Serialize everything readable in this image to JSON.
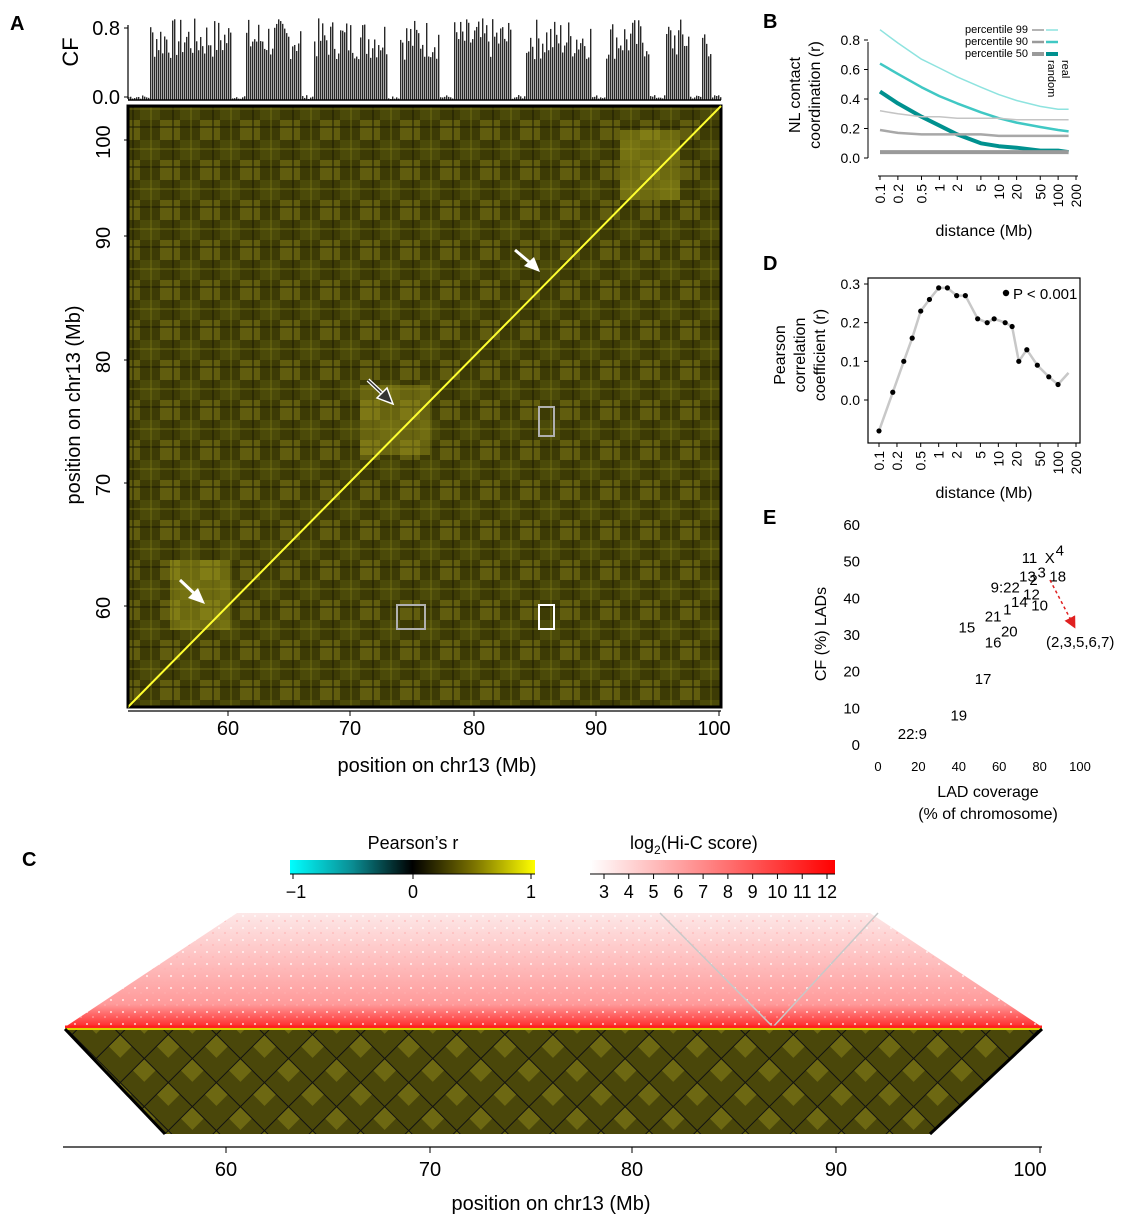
{
  "panels": {
    "A": {
      "label": "A",
      "cf_label": "CF",
      "cf_ticks": [
        "0.0",
        "0.8"
      ],
      "x_ticks": [
        "60",
        "70",
        "80",
        "90",
        "100"
      ],
      "y_ticks": [
        "60",
        "70",
        "80",
        "90",
        "100"
      ],
      "x_label": "position on chr13 (Mb)",
      "y_label": "position on chr13 (Mb)"
    },
    "B": {
      "label": "B",
      "y_label_1": "NL contact",
      "y_label_2": "coordination (r)",
      "x_label": "distance (Mb)",
      "y_ticks": [
        "0.0",
        "0.2",
        "0.4",
        "0.6",
        "0.8"
      ],
      "x_ticks": [
        "0.1",
        "0.2",
        "0.5",
        "1",
        "2",
        "5",
        "10",
        "20",
        "50",
        "100",
        "200"
      ],
      "legend": [
        "percentile 99",
        "percentile 90",
        "percentile 50"
      ],
      "legend_side": [
        "real",
        "random"
      ]
    },
    "C": {
      "label": "C",
      "pearson_title": "Pearson’s r",
      "pearson_ticks": [
        "−1",
        "0",
        "1"
      ],
      "hic_title": "log",
      "hic_sub": "2",
      "hic_title_rest": "(Hi-C score)",
      "hic_ticks": [
        "3",
        "4",
        "5",
        "6",
        "7",
        "8",
        "9",
        "10",
        "11",
        "12"
      ],
      "x_ticks": [
        "60",
        "70",
        "80",
        "90",
        "100"
      ],
      "x_label": "position on chr13 (Mb)"
    },
    "D": {
      "label": "D",
      "y_label_1": "Pearson",
      "y_label_2": "correlation",
      "y_label_3": "coefficient (r)",
      "x_label": "distance (Mb)",
      "y_ticks": [
        "0.0",
        "0.1",
        "0.2",
        "0.3"
      ],
      "x_ticks": [
        "0.1",
        "0.2",
        "0.5",
        "1",
        "2",
        "5",
        "10",
        "20",
        "50",
        "100",
        "200"
      ],
      "annotation": "P < 0.001"
    },
    "E": {
      "label": "E",
      "y_label": "CF (%) LADs",
      "x_label_1": "LAD coverage",
      "x_label_2": "(% of chromosome)",
      "y_ticks": [
        "0",
        "10",
        "20",
        "30",
        "40",
        "50",
        "60"
      ],
      "x_ticks": [
        "0",
        "20",
        "40",
        "60",
        "80",
        "100"
      ],
      "arrow_label": "(2,3,5,6,7)"
    }
  },
  "colors": {
    "teal_dark": "#00918f",
    "teal_mid": "#40c8c4",
    "teal_light": "#8ee3df",
    "gray": "#9a9a9a",
    "heat_yellow": "#f0e020",
    "heat_red": "#ff0000",
    "arrow_red": "#e02020"
  },
  "chart_data": [
    {
      "id": "B",
      "type": "line",
      "x": [
        0.1,
        0.2,
        0.5,
        1,
        2,
        5,
        10,
        20,
        50,
        100,
        150
      ],
      "xscale": "log",
      "xlim": [
        0.1,
        200
      ],
      "ylim": [
        -0.05,
        0.9
      ],
      "ylabel": "NL contact coordination (r)",
      "xlabel": "distance (Mb)",
      "series": [
        {
          "name": "percentile 99",
          "group": "real",
          "values": [
            0.87,
            0.78,
            0.67,
            0.61,
            0.55,
            0.48,
            0.43,
            0.39,
            0.35,
            0.33,
            0.33
          ]
        },
        {
          "name": "percentile 90",
          "group": "real",
          "values": [
            0.64,
            0.57,
            0.48,
            0.42,
            0.37,
            0.31,
            0.27,
            0.24,
            0.21,
            0.19,
            0.18
          ]
        },
        {
          "name": "percentile 50",
          "group": "real",
          "values": [
            0.45,
            0.37,
            0.28,
            0.22,
            0.16,
            0.1,
            0.08,
            0.07,
            0.05,
            0.05,
            0.04
          ]
        },
        {
          "name": "percentile 99",
          "group": "random",
          "values": [
            0.32,
            0.3,
            0.28,
            0.28,
            0.27,
            0.27,
            0.27,
            0.26,
            0.26,
            0.26,
            0.26
          ]
        },
        {
          "name": "percentile 90",
          "group": "random",
          "values": [
            0.19,
            0.17,
            0.16,
            0.16,
            0.16,
            0.16,
            0.15,
            0.15,
            0.15,
            0.15,
            0.15
          ]
        },
        {
          "name": "percentile 50",
          "group": "random",
          "values": [
            0.04,
            0.04,
            0.04,
            0.04,
            0.04,
            0.04,
            0.04,
            0.04,
            0.04,
            0.04,
            0.04
          ]
        }
      ]
    },
    {
      "id": "D",
      "type": "scatter",
      "xscale": "log",
      "xlim": [
        0.1,
        200
      ],
      "ylim": [
        -0.09,
        0.31
      ],
      "xlabel": "distance (Mb)",
      "ylabel": "Pearson correlation coefficient (r)",
      "x": [
        0.1,
        0.17,
        0.26,
        0.36,
        0.5,
        0.7,
        1.0,
        1.4,
        2.0,
        2.8,
        4.5,
        6.5,
        8.5,
        13,
        17,
        22,
        30,
        45,
        70,
        100,
        150
      ],
      "y": [
        -0.08,
        0.02,
        0.1,
        0.16,
        0.23,
        0.26,
        0.29,
        0.29,
        0.27,
        0.27,
        0.21,
        0.2,
        0.21,
        0.2,
        0.19,
        0.1,
        0.13,
        0.09,
        0.06,
        0.04,
        0.07
      ]
    },
    {
      "id": "E",
      "type": "scatter",
      "xlim": [
        0,
        100
      ],
      "ylim": [
        0,
        60
      ],
      "xlabel": "LAD coverage (% of chromosome)",
      "ylabel": "CF (%) LADs",
      "points": [
        {
          "label": "22:9",
          "x": 17,
          "y": 3
        },
        {
          "label": "19",
          "x": 40,
          "y": 8
        },
        {
          "label": "17",
          "x": 52,
          "y": 18
        },
        {
          "label": "15",
          "x": 44,
          "y": 32
        },
        {
          "label": "16",
          "x": 57,
          "y": 28
        },
        {
          "label": "21",
          "x": 57,
          "y": 35
        },
        {
          "label": "20",
          "x": 65,
          "y": 31
        },
        {
          "label": "1",
          "x": 64,
          "y": 37
        },
        {
          "label": "14",
          "x": 70,
          "y": 39
        },
        {
          "label": "12",
          "x": 76,
          "y": 41
        },
        {
          "label": "10",
          "x": 80,
          "y": 38
        },
        {
          "label": "9:22",
          "x": 63,
          "y": 43
        },
        {
          "label": "2",
          "x": 77,
          "y": 45
        },
        {
          "label": "13",
          "x": 74,
          "y": 46
        },
        {
          "label": "3",
          "x": 81,
          "y": 47
        },
        {
          "label": "18",
          "x": 89,
          "y": 46
        },
        {
          "label": "11",
          "x": 75,
          "y": 51
        },
        {
          "label": "X",
          "x": 85,
          "y": 51
        },
        {
          "label": "4",
          "x": 90,
          "y": 53
        }
      ]
    }
  ]
}
